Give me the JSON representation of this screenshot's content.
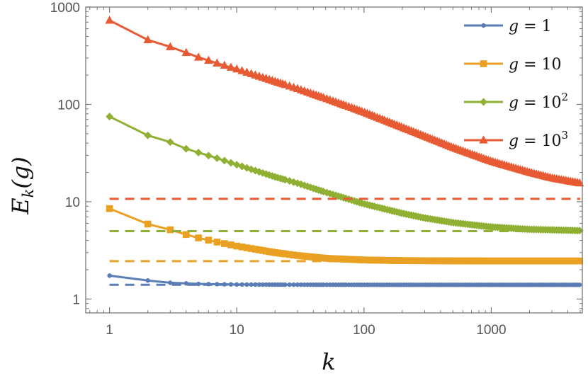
{
  "chart_data": {
    "type": "line",
    "title": "",
    "xlabel": "k",
    "ylabel_main": "E",
    "ylabel_sub": "k",
    "ylabel_rest": "(g)",
    "xscale": "log",
    "yscale": "log",
    "xlim": [
      0.65,
      5200
    ],
    "ylim": [
      0.72,
      1000
    ],
    "xticks": [
      1,
      10,
      100,
      1000
    ],
    "xtick_labels": [
      "1",
      "10",
      "100",
      "1000"
    ],
    "yticks": [
      1,
      10,
      100,
      1000
    ],
    "ytick_labels": [
      "1",
      "10",
      "100",
      "1000"
    ],
    "x_max": 5000,
    "grid": false,
    "legend_position": "top-right",
    "series": [
      {
        "name": "g = 1",
        "legend_prefix": "g = ",
        "legend_base": "1",
        "legend_exp": "",
        "color": "#5b7db6",
        "marker": "circle",
        "limit": 1.4,
        "points": [
          [
            1,
            1.74
          ],
          [
            2,
            1.55
          ],
          [
            3,
            1.47
          ],
          [
            4,
            1.45
          ],
          [
            5,
            1.43
          ],
          [
            7,
            1.42
          ],
          [
            10,
            1.41
          ],
          [
            20,
            1.405
          ],
          [
            100,
            1.4
          ],
          [
            5000,
            1.4
          ]
        ]
      },
      {
        "name": "g = 10",
        "legend_prefix": "g = ",
        "legend_base": "10",
        "legend_exp": "",
        "color": "#e9a023",
        "marker": "square",
        "limit": 2.45,
        "points": [
          [
            1,
            8.5
          ],
          [
            2,
            5.9
          ],
          [
            3,
            5.15
          ],
          [
            4,
            4.6
          ],
          [
            5,
            4.25
          ],
          [
            7,
            3.85
          ],
          [
            10,
            3.5
          ],
          [
            20,
            3.0
          ],
          [
            30,
            2.8
          ],
          [
            50,
            2.62
          ],
          [
            100,
            2.52
          ],
          [
            200,
            2.48
          ],
          [
            1000,
            2.46
          ],
          [
            5000,
            2.46
          ]
        ]
      },
      {
        "name": "g = 10^2",
        "legend_prefix": "g = ",
        "legend_base": "10",
        "legend_exp": "2",
        "color": "#8fb032",
        "marker": "diamond",
        "limit": 4.98,
        "points": [
          [
            1,
            75
          ],
          [
            2,
            48
          ],
          [
            3,
            41
          ],
          [
            4,
            35
          ],
          [
            5,
            32
          ],
          [
            7,
            28
          ],
          [
            10,
            24
          ],
          [
            20,
            18
          ],
          [
            30,
            15.5
          ],
          [
            50,
            12.5
          ],
          [
            100,
            9.5
          ],
          [
            200,
            7.6
          ],
          [
            300,
            6.8
          ],
          [
            500,
            6.1
          ],
          [
            1000,
            5.5
          ],
          [
            2000,
            5.2
          ],
          [
            5000,
            5.05
          ]
        ]
      },
      {
        "name": "g = 10^3",
        "legend_prefix": "g = ",
        "legend_base": "10",
        "legend_exp": "3",
        "color": "#e85a33",
        "marker": "triangle",
        "limit": 10.7,
        "points": [
          [
            1,
            730
          ],
          [
            2,
            460
          ],
          [
            3,
            390
          ],
          [
            4,
            340
          ],
          [
            5,
            305
          ],
          [
            7,
            265
          ],
          [
            10,
            230
          ],
          [
            20,
            172
          ],
          [
            30,
            145
          ],
          [
            50,
            115
          ],
          [
            100,
            83
          ],
          [
            200,
            58
          ],
          [
            300,
            47
          ],
          [
            500,
            36
          ],
          [
            1000,
            26
          ],
          [
            2000,
            20
          ],
          [
            3000,
            17.5
          ],
          [
            5000,
            15.5
          ]
        ]
      }
    ]
  }
}
